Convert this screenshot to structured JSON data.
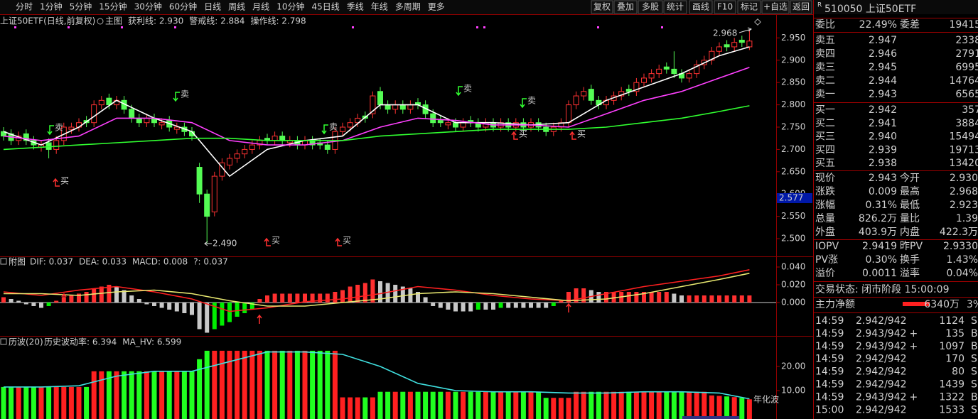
{
  "toolbar": [
    "分时",
    "1分钟",
    "5分钟",
    "15分钟",
    "30分钟",
    "60分钟",
    "日线",
    "周线",
    "月线",
    "10分钟",
    "45日线",
    "季线",
    "年线",
    "多周期",
    "更多"
  ],
  "tools": [
    "复权",
    "叠加",
    "多股",
    "统计",
    "画线",
    "F10",
    "标记",
    "+自选",
    "返回"
  ],
  "chart_data": [
    {
      "type": "candlestick",
      "title": "上证50ETF(日线,前复权)",
      "subtitle": "主图",
      "grid": false,
      "open": [
        2.74,
        2.735,
        2.72,
        2.735,
        2.72,
        2.705,
        2.715,
        2.7,
        2.72,
        2.745,
        2.75,
        2.765,
        2.76,
        2.8,
        2.815,
        2.8,
        2.81,
        2.79,
        2.77,
        2.76,
        2.77,
        2.755,
        2.765,
        2.745,
        2.75,
        2.74,
        2.66,
        2.6,
        2.56,
        2.64,
        2.665,
        2.68,
        2.69,
        2.7,
        2.71,
        2.725,
        2.72,
        2.73,
        2.715,
        2.72,
        2.71,
        2.72,
        2.715,
        2.71,
        2.7,
        2.74,
        2.75,
        2.76,
        2.775,
        2.78,
        2.83,
        2.8,
        2.79,
        2.8,
        2.79,
        2.805,
        2.8,
        2.78,
        2.765,
        2.755,
        2.76,
        2.75,
        2.765,
        2.76,
        2.75,
        2.76,
        2.75,
        2.76,
        2.75,
        2.76,
        2.75,
        2.76,
        2.75,
        2.74,
        2.75,
        2.76,
        2.8,
        2.82,
        2.835,
        2.81,
        2.8,
        2.81,
        2.82,
        2.835,
        2.83,
        2.85,
        2.86,
        2.87,
        2.885,
        2.88,
        2.87,
        2.86,
        2.87,
        2.89,
        2.9,
        2.92,
        2.935,
        2.93,
        2.945,
        2.93
      ],
      "high": [
        2.75,
        2.745,
        2.74,
        2.745,
        2.73,
        2.72,
        2.725,
        2.73,
        2.76,
        2.76,
        2.77,
        2.775,
        2.81,
        2.82,
        2.825,
        2.82,
        2.82,
        2.8,
        2.78,
        2.78,
        2.78,
        2.77,
        2.775,
        2.76,
        2.76,
        2.75,
        2.67,
        2.61,
        2.65,
        2.68,
        2.69,
        2.7,
        2.71,
        2.72,
        2.73,
        2.735,
        2.74,
        2.74,
        2.73,
        2.73,
        2.73,
        2.73,
        2.725,
        2.72,
        2.75,
        2.76,
        2.77,
        2.78,
        2.785,
        2.83,
        2.84,
        2.81,
        2.81,
        2.81,
        2.81,
        2.815,
        2.81,
        2.79,
        2.775,
        2.77,
        2.77,
        2.77,
        2.775,
        2.77,
        2.77,
        2.77,
        2.77,
        2.77,
        2.77,
        2.77,
        2.77,
        2.77,
        2.76,
        2.76,
        2.77,
        2.81,
        2.83,
        2.84,
        2.845,
        2.82,
        2.82,
        2.83,
        2.84,
        2.845,
        2.86,
        2.87,
        2.88,
        2.89,
        2.895,
        2.92,
        2.88,
        2.88,
        2.9,
        2.91,
        2.93,
        2.94,
        2.945,
        2.95,
        2.955,
        2.968
      ],
      "low": [
        2.72,
        2.71,
        2.71,
        2.71,
        2.7,
        2.695,
        2.68,
        2.69,
        2.71,
        2.735,
        2.74,
        2.75,
        2.75,
        2.79,
        2.79,
        2.79,
        2.78,
        2.76,
        2.75,
        2.75,
        2.75,
        2.745,
        2.74,
        2.735,
        2.73,
        2.72,
        2.58,
        2.49,
        2.55,
        2.63,
        2.655,
        2.67,
        2.68,
        2.69,
        2.7,
        2.71,
        2.71,
        2.71,
        2.705,
        2.7,
        2.7,
        2.7,
        2.7,
        2.69,
        2.69,
        2.73,
        2.74,
        2.75,
        2.76,
        2.77,
        2.79,
        2.78,
        2.78,
        2.78,
        2.78,
        2.79,
        2.77,
        2.75,
        2.75,
        2.745,
        2.74,
        2.74,
        2.75,
        2.74,
        2.74,
        2.74,
        2.74,
        2.74,
        2.74,
        2.74,
        2.74,
        2.74,
        2.73,
        2.73,
        2.74,
        2.75,
        2.79,
        2.81,
        2.8,
        2.79,
        2.79,
        2.8,
        2.81,
        2.82,
        2.82,
        2.84,
        2.85,
        2.86,
        2.87,
        2.86,
        2.85,
        2.85,
        2.86,
        2.88,
        2.89,
        2.91,
        2.92,
        2.92,
        2.93,
        2.923
      ],
      "close": [
        2.73,
        2.72,
        2.73,
        2.72,
        2.71,
        2.71,
        2.7,
        2.72,
        2.75,
        2.75,
        2.76,
        2.76,
        2.8,
        2.81,
        2.8,
        2.81,
        2.79,
        2.77,
        2.76,
        2.77,
        2.76,
        2.76,
        2.75,
        2.75,
        2.74,
        2.73,
        2.6,
        2.55,
        2.64,
        2.67,
        2.68,
        2.69,
        2.7,
        2.71,
        2.72,
        2.72,
        2.73,
        2.72,
        2.72,
        2.71,
        2.72,
        2.71,
        2.71,
        2.7,
        2.74,
        2.75,
        2.76,
        2.77,
        2.77,
        2.82,
        2.8,
        2.79,
        2.8,
        2.79,
        2.8,
        2.8,
        2.78,
        2.76,
        2.76,
        2.76,
        2.75,
        2.76,
        2.76,
        2.75,
        2.76,
        2.75,
        2.76,
        2.75,
        2.76,
        2.75,
        2.76,
        2.75,
        2.74,
        2.75,
        2.76,
        2.8,
        2.82,
        2.83,
        2.81,
        2.8,
        2.81,
        2.82,
        2.83,
        2.83,
        2.85,
        2.86,
        2.87,
        2.88,
        2.88,
        2.87,
        2.86,
        2.87,
        2.89,
        2.9,
        2.92,
        2.93,
        2.93,
        2.94,
        2.94,
        2.943
      ],
      "up_color": "#ff3232",
      "down_color": "#54fc54",
      "series": [
        {
          "name": "获利线: 2.930",
          "color": "#ffffff",
          "x": [
            0,
            5,
            10,
            15,
            20,
            25,
            30,
            35,
            40,
            45,
            50,
            55,
            60,
            65,
            70,
            75,
            80,
            85,
            90,
            95,
            99
          ],
          "values": [
            2.74,
            2.71,
            2.75,
            2.81,
            2.77,
            2.74,
            2.64,
            2.7,
            2.72,
            2.73,
            2.8,
            2.8,
            2.76,
            2.76,
            2.755,
            2.76,
            2.81,
            2.84,
            2.87,
            2.91,
            2.93
          ]
        },
        {
          "name": "警戒线: 2.884",
          "color": "#ff40ff",
          "x": [
            0,
            5,
            10,
            15,
            20,
            25,
            30,
            35,
            40,
            45,
            50,
            55,
            60,
            65,
            70,
            75,
            80,
            85,
            90,
            95,
            99
          ],
          "values": [
            2.73,
            2.72,
            2.73,
            2.77,
            2.77,
            2.76,
            2.72,
            2.71,
            2.71,
            2.72,
            2.75,
            2.77,
            2.765,
            2.755,
            2.755,
            2.75,
            2.78,
            2.81,
            2.83,
            2.86,
            2.884
          ]
        },
        {
          "name": "操作线: 2.798",
          "color": "#30ff30",
          "x": [
            0,
            5,
            10,
            15,
            20,
            25,
            30,
            35,
            40,
            45,
            50,
            55,
            60,
            65,
            70,
            75,
            80,
            85,
            90,
            95,
            99
          ],
          "values": [
            2.7,
            2.705,
            2.71,
            2.715,
            2.72,
            2.725,
            2.725,
            2.72,
            2.72,
            2.72,
            2.73,
            2.735,
            2.74,
            2.745,
            2.745,
            2.745,
            2.75,
            2.76,
            2.77,
            2.785,
            2.798
          ]
        }
      ],
      "ylim": [
        2.465,
        3.0
      ],
      "yticks": [
        {
          "value": 2.95,
          "label": "2.950"
        },
        {
          "value": 2.9,
          "label": "2.900"
        },
        {
          "value": 2.85,
          "label": "2.850"
        },
        {
          "value": 2.8,
          "label": "2.800"
        },
        {
          "value": 2.75,
          "label": "2.750"
        },
        {
          "value": 2.7,
          "label": "2.700"
        },
        {
          "value": 2.65,
          "label": "2.650"
        },
        {
          "value": 2.6,
          "label": "2.600"
        },
        {
          "value": 2.55,
          "label": "2.550"
        },
        {
          "value": 2.5,
          "label": "2.500"
        }
      ],
      "signals": [
        "卖",
        "卖",
        "买",
        "卖",
        "卖",
        "卖",
        "买",
        "买",
        "买",
        "买"
      ],
      "annotations": [
        "2.968",
        "2.490"
      ],
      "cursor_label": "2.577"
    },
    {
      "type": "macd",
      "title": "附图",
      "name": "MACD: 0.008",
      "extra": "?: 0.037",
      "values": [
        0.006,
        0.004,
        0.002,
        -0.002,
        -0.004,
        -0.006,
        -0.004,
        0.002,
        0.006,
        0.008,
        0.01,
        0.012,
        0.016,
        0.018,
        0.02,
        0.018,
        0.014,
        0.008,
        0.004,
        -0.002,
        -0.004,
        -0.006,
        -0.008,
        -0.01,
        -0.012,
        -0.014,
        -0.03,
        -0.034,
        -0.03,
        -0.026,
        -0.022,
        -0.016,
        -0.012,
        -0.008,
        0.004,
        0.008,
        0.01,
        0.01,
        0.01,
        0.01,
        0.01,
        0.01,
        0.01,
        0.01,
        0.012,
        0.014,
        0.018,
        0.02,
        0.022,
        0.026,
        0.024,
        0.022,
        0.02,
        0.018,
        0.016,
        0.012,
        0.006,
        -0.004,
        -0.006,
        -0.008,
        -0.01,
        -0.01,
        -0.01,
        -0.008,
        -0.008,
        -0.008,
        -0.006,
        -0.006,
        -0.006,
        -0.006,
        -0.006,
        -0.006,
        -0.006,
        -0.004,
        0.002,
        0.012,
        0.016,
        0.016,
        0.014,
        0.012,
        0.012,
        0.012,
        0.012,
        0.012,
        0.012,
        0.012,
        0.012,
        0.012,
        0.012,
        0.01,
        0.008,
        0.008,
        0.008,
        0.008,
        0.008,
        0.008,
        0.008,
        0.008,
        0.008,
        0.008
      ],
      "series": [
        {
          "name": "DIF: 0.037",
          "color": "#ff2020",
          "x": [
            0,
            5,
            10,
            15,
            20,
            25,
            30,
            35,
            40,
            45,
            50,
            55,
            60,
            65,
            70,
            75,
            80,
            85,
            90,
            95,
            99
          ],
          "values": [
            0.012,
            0.008,
            0.014,
            0.018,
            0.012,
            0.004,
            -0.01,
            -0.006,
            0.001,
            0.004,
            0.01,
            0.018,
            0.014,
            0.008,
            0.004,
            0.002,
            0.01,
            0.018,
            0.024,
            0.03,
            0.037
          ]
        },
        {
          "name": "DEA: 0.033",
          "color": "#e8e870",
          "x": [
            0,
            5,
            10,
            15,
            20,
            25,
            30,
            35,
            40,
            45,
            50,
            55,
            60,
            65,
            70,
            75,
            80,
            85,
            90,
            95,
            99
          ],
          "values": [
            0.01,
            0.01,
            0.008,
            0.012,
            0.014,
            0.01,
            0.002,
            -0.004,
            -0.004,
            0.0,
            0.004,
            0.01,
            0.012,
            0.01,
            0.006,
            0.002,
            0.004,
            0.01,
            0.018,
            0.026,
            0.033
          ]
        }
      ],
      "ylim": [
        -0.0352,
        0.0512
      ],
      "yticks": [
        {
          "value": 0.04,
          "label": "0.040"
        },
        {
          "value": 0.02,
          "label": "0.020"
        },
        {
          "value": 0,
          "label": "0.000"
        }
      ]
    },
    {
      "type": "bar",
      "title": "历波(20)",
      "name": "历史波动率: 6.394",
      "unit_label": "年化波",
      "values": [
        11.5,
        11.5,
        11.5,
        11.5,
        11.5,
        11.5,
        11.5,
        11.5,
        11.5,
        11.5,
        11.5,
        11.5,
        18,
        18,
        18,
        18,
        18,
        18,
        18,
        18,
        18,
        18,
        18,
        18,
        18,
        18,
        23,
        26.5,
        26.5,
        26.5,
        26.5,
        26.5,
        26.5,
        26.5,
        26.5,
        26.5,
        26.5,
        26.5,
        26.5,
        26.5,
        26.5,
        26.5,
        26.5,
        26.5,
        26.5,
        7.2,
        7.2,
        7.2,
        7.2,
        7.2,
        9.5,
        9.5,
        9.5,
        9.5,
        9.5,
        9.5,
        9.5,
        9.5,
        9.5,
        9.5,
        9.5,
        9.5,
        9.5,
        9.5,
        9.5,
        9.5,
        9.5,
        9.5,
        9.5,
        9.5,
        9.5,
        9.5,
        7,
        7,
        7,
        7,
        9.5,
        9.5,
        9.5,
        9.5,
        9.5,
        9.5,
        9.5,
        9.5,
        9.5,
        9.5,
        9.5,
        9.5,
        9.5,
        9.5,
        9.5,
        9.5,
        9.5,
        9.5,
        8,
        7.8,
        7.6,
        7.3,
        7,
        6.394
      ],
      "series": [
        {
          "name": "MA_HV: 6.599",
          "color": "#40e0e0",
          "x": [
            0,
            5,
            10,
            15,
            20,
            25,
            30,
            35,
            40,
            45,
            50,
            55,
            60,
            65,
            70,
            75,
            80,
            85,
            90,
            95,
            99
          ],
          "values": [
            11.5,
            11.5,
            12,
            16,
            18,
            18,
            22,
            26,
            26,
            25,
            20,
            13,
            10,
            9.5,
            9.5,
            9,
            9,
            9.5,
            9.5,
            9,
            6.599
          ]
        }
      ],
      "ylim": [
        -1.76,
        32.35
      ],
      "yticks": [
        {
          "value": 20,
          "label": "20.00"
        },
        {
          "value": 10,
          "label": "10.00"
        }
      ]
    }
  ],
  "quote": {
    "badge": "R",
    "title": "510050 上证50ETF",
    "ratio": [
      "委比",
      "22.49%",
      "委差",
      "19415"
    ],
    "asks": [
      [
        "卖五",
        "2.947",
        "2338"
      ],
      [
        "卖四",
        "2.946",
        "2791"
      ],
      [
        "卖三",
        "2.945",
        "6995"
      ],
      [
        "卖二",
        "2.944",
        "14764"
      ],
      [
        "卖一",
        "2.943",
        "6565"
      ]
    ],
    "bids": [
      [
        "买一",
        "2.942",
        "357"
      ],
      [
        "买二",
        "2.941",
        "3884"
      ],
      [
        "买三",
        "2.940",
        "15494"
      ],
      [
        "买四",
        "2.939",
        "19713"
      ],
      [
        "买五",
        "2.938",
        "13420"
      ]
    ],
    "stats": [
      [
        "现价",
        "2.943",
        "今开",
        "2.930"
      ],
      [
        "涨跌",
        "0.009",
        "最高",
        "2.968"
      ],
      [
        "涨幅",
        "0.31%",
        "最低",
        "2.923"
      ],
      [
        "总量",
        "826.2万",
        "量比",
        "1.39"
      ],
      [
        "外盘",
        "403.9万",
        "内盘",
        "422.3万"
      ],
      [
        "IOPV",
        "2.9419",
        "昨PV",
        "2.9330"
      ],
      [
        "PV涨",
        "0.30%",
        "换手",
        "1.43%"
      ],
      [
        "溢价",
        "0.0011",
        "溢率",
        "0.04%"
      ]
    ],
    "status": "交易状态: 闭市阶段 15:00:09",
    "flow": [
      "主力净额",
      "6340万",
      "3%"
    ],
    "trades": [
      [
        "14:59",
        "2.942",
        "/942",
        "",
        "1124",
        "S"
      ],
      [
        "14:59",
        "2.943",
        "/942",
        "+",
        "135",
        "B"
      ],
      [
        "14:59",
        "2.943",
        "/942",
        "+",
        "1097",
        "B"
      ],
      [
        "14:59",
        "2.942",
        "/942",
        "",
        "170",
        "S"
      ],
      [
        "14:59",
        "2.942",
        "/942",
        "",
        "80",
        "S"
      ],
      [
        "14:59",
        "2.942",
        "/942",
        "",
        "1439",
        "S"
      ],
      [
        "14:59",
        "2.943",
        "/942",
        "+",
        "1322",
        "B"
      ],
      [
        "15:00",
        "2.942",
        "/942",
        "",
        "1533",
        "S"
      ]
    ]
  }
}
